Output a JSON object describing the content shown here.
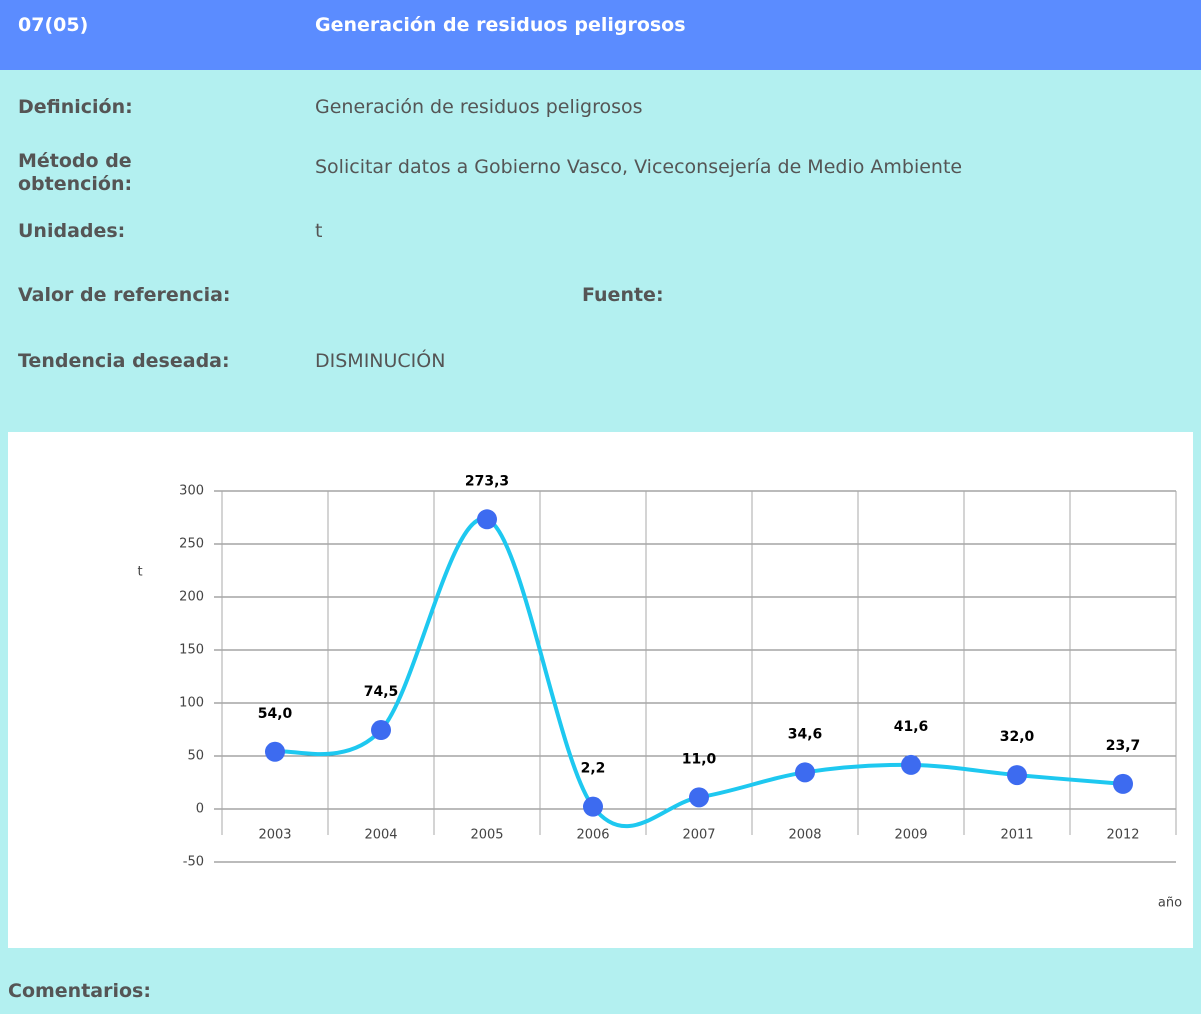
{
  "header": {
    "code": "07(05)",
    "title": "Generación de residuos peligrosos"
  },
  "fields": [
    {
      "label": "Definición:",
      "value": "Generación de residuos peligrosos"
    },
    {
      "label": "Método de obtención:",
      "value": "Solicitar datos a Gobierno Vasco, Viceconsejería de Medio Ambiente"
    },
    {
      "label": "Unidades:",
      "value": "t"
    },
    {
      "label": "Valor de referencia:",
      "value": ""
    },
    {
      "label": "Tendencia deseada:",
      "value": "DISMINUCIÓN"
    }
  ],
  "source_label": "Fuente:",
  "chart_data": {
    "type": "line",
    "y_label": "t",
    "x_label": "año",
    "categories": [
      "2003",
      "2004",
      "2005",
      "2006",
      "2007",
      "2008",
      "2009",
      "2011",
      "2012"
    ],
    "values": [
      54.0,
      74.5,
      273.3,
      2.2,
      11.0,
      34.6,
      41.6,
      32.0,
      23.7
    ],
    "value_labels": [
      "54,0",
      "74,5",
      "273,3",
      "2,2",
      "11,0",
      "34,6",
      "41,6",
      "32,0",
      "23,7"
    ],
    "line_color": "#1ec8f0",
    "marker_color": "#3d6bf0",
    "ylim": [
      -50,
      300
    ],
    "yticks": [
      -50,
      0,
      50,
      100,
      150,
      200,
      250,
      300
    ],
    "grid": true
  },
  "comments_label": "Comentarios:"
}
